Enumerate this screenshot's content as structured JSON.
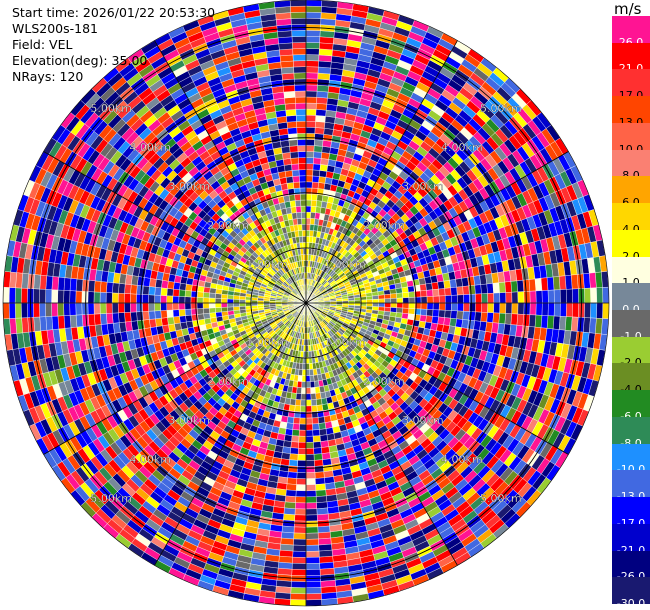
{
  "header": {
    "start_time": "Start time: 2026/01/22 20:53:30",
    "instrument": "WLS200s-181",
    "field": "Field: VEL",
    "elevation": "Elevation(deg): 35.00",
    "nrays": "NRays: 120"
  },
  "colorbar": {
    "unit": "m/s",
    "bins": [
      {
        "label": "26.0",
        "color": "#ff1493"
      },
      {
        "label": "21.0",
        "color": "#ff0000"
      },
      {
        "label": "17.0",
        "color": "#ff3030"
      },
      {
        "label": "13.0",
        "color": "#ff4500"
      },
      {
        "label": "10.0",
        "color": "#ff6347"
      },
      {
        "label": "8.0",
        "color": "#fa8072"
      },
      {
        "label": "6.0",
        "color": "#ffa500"
      },
      {
        "label": "4.0",
        "color": "#ffd700"
      },
      {
        "label": "2.0",
        "color": "#ffff00"
      },
      {
        "label": "1.0",
        "color": "#ffffe0"
      },
      {
        "label": "0.0",
        "color": "#778899"
      },
      {
        "label": "-1.0",
        "color": "#696969"
      },
      {
        "label": "-2.0",
        "color": "#9acd32"
      },
      {
        "label": "-4.0",
        "color": "#6b8e23"
      },
      {
        "label": "-6.0",
        "color": "#228b22"
      },
      {
        "label": "-8.0",
        "color": "#2e8b57"
      },
      {
        "label": "-10.0",
        "color": "#1e90ff"
      },
      {
        "label": "-13.0",
        "color": "#4169e1"
      },
      {
        "label": "-17.0",
        "color": "#0000ff"
      },
      {
        "label": "-21.0",
        "color": "#0000cd"
      },
      {
        "label": "-26.0",
        "color": "#000080"
      },
      {
        "label": "-30.0",
        "color": "#191970"
      }
    ]
  },
  "chart_data": {
    "type": "heatmap",
    "projection": "polar PPI (plan position indicator)",
    "nrays": 120,
    "field": "VEL",
    "units": "m/s",
    "range_rings": [
      {
        "range_km": 1.0,
        "label": "1.00km"
      },
      {
        "range_km": 2.0,
        "label": "2.00km"
      },
      {
        "range_km": 3.0,
        "label": "3.00km"
      },
      {
        "range_km": 4.0,
        "label": "4.00km"
      },
      {
        "range_km": 5.0,
        "label": "5.00km"
      }
    ],
    "ring_label_azimuths_deg": [
      315,
      45,
      135,
      225
    ],
    "max_range_km": 5.5,
    "spokes_deg": [
      0,
      30,
      60,
      90,
      120,
      150,
      180,
      210,
      240,
      270,
      300,
      330
    ],
    "velocity_pattern": {
      "near_range_km": 1.3,
      "near_dominant_bins": [
        "0.0",
        "-1.0",
        "-2.0",
        "-4.0",
        "2.0",
        "4.0"
      ],
      "far_dominant_bins": [
        "26.0",
        "21.0",
        "17.0",
        "13.0",
        "-13.0",
        "-17.0",
        "-21.0",
        "-26.0",
        "-30.0"
      ],
      "note_far_field": "noisy"
    }
  }
}
